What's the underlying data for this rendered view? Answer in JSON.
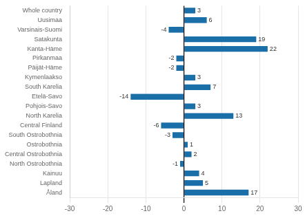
{
  "chart_data": {
    "type": "bar",
    "orientation": "horizontal",
    "categories": [
      "Whole country",
      "Uusimaa",
      "Varsinais-Suomi",
      "Satakunta",
      "Kanta-Häme",
      "Pirkanmaa",
      "Päijät-Häme",
      "Kymenlaakso",
      "South Karelia",
      "Etelä-Savo",
      "Pohjois-Savo",
      "North Karelia",
      "Central Finland",
      "South Ostrobothnia",
      "Ostrobothnia",
      "Central Ostrobothnia",
      "North Ostrobothnia",
      "Kainuu",
      "Lapland",
      "Åland"
    ],
    "values": [
      3,
      6,
      -4,
      19,
      22,
      -2,
      -2,
      3,
      7,
      -14,
      3,
      13,
      -6,
      -3,
      1,
      2,
      -1,
      4,
      5,
      17
    ],
    "color": "#1a6fa8",
    "xlim": [
      -30,
      30
    ],
    "xticks": [
      -30,
      -20,
      -10,
      0,
      10,
      20,
      30
    ],
    "grid": true,
    "data_labels": true
  }
}
